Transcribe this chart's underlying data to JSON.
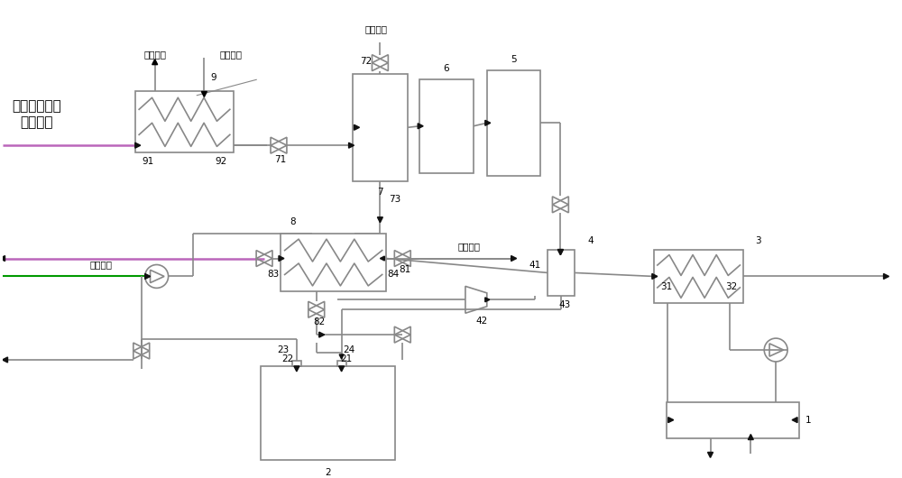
{
  "bg": "#ffffff",
  "lc": "#888888",
  "lw": 1.2,
  "pink": "#bb66bb",
  "green": "#009900",
  "black": "#111111",
  "title1": "超临界水氧化",
  "title2": "反应产物",
  "hot_out": "热水出口",
  "cold_in": "冷水进口"
}
